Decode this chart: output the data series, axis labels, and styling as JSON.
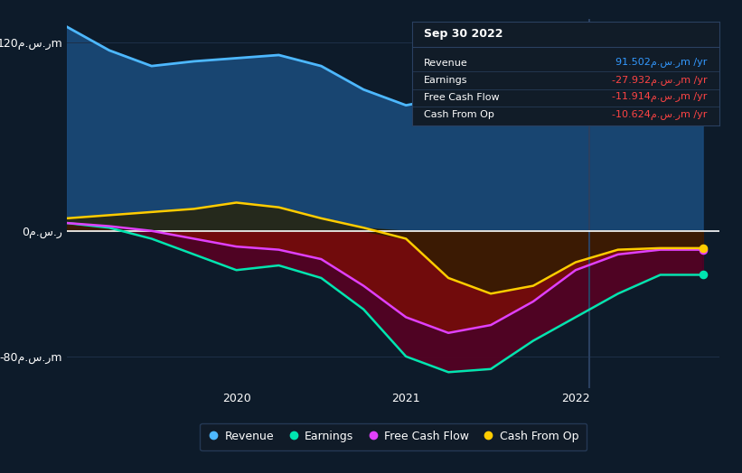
{
  "background_color": "#0d1b2a",
  "plot_bg_color": "#0d1b2a",
  "grid_color": "#1e3048",
  "zero_line_color": "#ffffff",
  "separator_x": 2022.08,
  "title_box": {
    "date": "Sep 30 2022",
    "rows": [
      {
        "label": "Revenue",
        "value": "91.502م.س.رm /yr",
        "color": "#3399ff"
      },
      {
        "label": "Earnings",
        "value": "-27.932م.س.رm /yr",
        "color": "#ff4444"
      },
      {
        "label": "Free Cash Flow",
        "value": "-11.914م.س.رm /yr",
        "color": "#ff4444"
      },
      {
        "label": "Cash From Op",
        "value": "-10.624م.س.رm /yr",
        "color": "#ff4444"
      }
    ]
  },
  "legend": [
    {
      "label": "Revenue",
      "color": "#4db8ff"
    },
    {
      "label": "Earnings",
      "color": "#00e5b0"
    },
    {
      "label": "Free Cash Flow",
      "color": "#e040fb"
    },
    {
      "label": "Cash From Op",
      "color": "#ffcc00"
    }
  ],
  "x": [
    2019.0,
    2019.25,
    2019.5,
    2019.75,
    2020.0,
    2020.25,
    2020.5,
    2020.75,
    2021.0,
    2021.25,
    2021.5,
    2021.75,
    2022.0,
    2022.25,
    2022.5,
    2022.75
  ],
  "revenue": [
    130,
    115,
    105,
    108,
    110,
    112,
    105,
    90,
    80,
    85,
    88,
    95,
    100,
    105,
    92,
    92
  ],
  "earnings": [
    5,
    2,
    -5,
    -15,
    -25,
    -22,
    -30,
    -50,
    -80,
    -90,
    -88,
    -70,
    -55,
    -40,
    -28,
    -28
  ],
  "free_cash_flow": [
    5,
    3,
    0,
    -5,
    -10,
    -12,
    -18,
    -35,
    -55,
    -65,
    -60,
    -45,
    -25,
    -15,
    -12,
    -12
  ],
  "cash_from_op": [
    8,
    10,
    12,
    14,
    18,
    15,
    8,
    2,
    -5,
    -30,
    -40,
    -35,
    -20,
    -12,
    -11,
    -11
  ],
  "revenue_color": "#4db8ff",
  "earnings_color": "#00e5b0",
  "fcf_color": "#e040fb",
  "cfop_color": "#ffcc00",
  "ytick_labels": [
    "-80م.س.رm",
    "0م.س.ر",
    "120م.س.رm"
  ],
  "ytick_vals": [
    -80,
    0,
    120
  ],
  "xtick_labels": [
    "2020",
    "2021",
    "2022"
  ],
  "xtick_vals": [
    2020.0,
    2021.0,
    2022.0
  ],
  "xlim": [
    2019.0,
    2022.85
  ],
  "ylim": [
    -100,
    135
  ]
}
